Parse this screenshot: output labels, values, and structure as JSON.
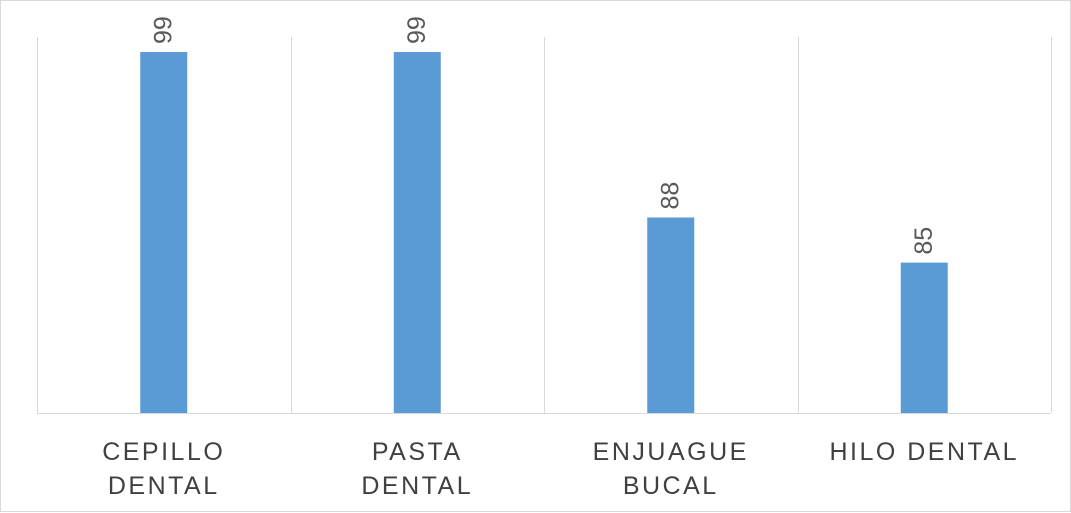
{
  "chart_data": {
    "type": "bar",
    "title": "",
    "xlabel": "",
    "ylabel": "",
    "categories": [
      [
        "CEPILLO",
        "DENTAL"
      ],
      [
        "PASTA",
        "DENTAL"
      ],
      [
        "ENJUAGUE",
        "BUCAL"
      ],
      [
        "HILO DENTAL"
      ]
    ],
    "values": [
      99,
      99,
      88,
      85
    ],
    "data_labels": [
      "99",
      "99",
      "88",
      "85"
    ],
    "ylim": [
      75,
      100
    ],
    "y_axis_visible": false,
    "grid": "vertical-category-separators",
    "legend": "none",
    "bar_color": "#5b9bd5",
    "gridline_color": "#d9d9d9",
    "label_color": "#404040",
    "data_label_color": "#595959"
  }
}
